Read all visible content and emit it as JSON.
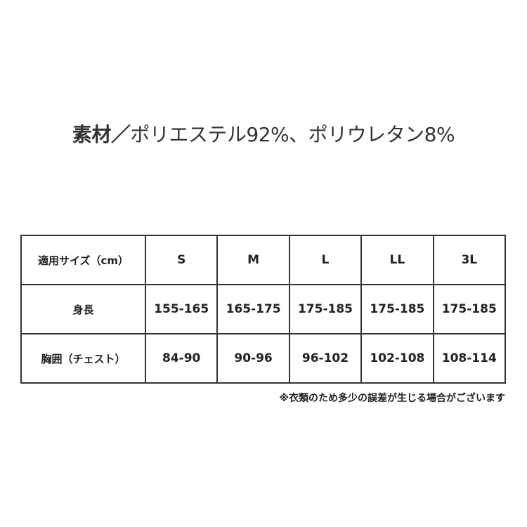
{
  "title": {
    "label": "素材／",
    "text": "ポリエステル92%、ポリウレタン8%"
  },
  "table": {
    "header": [
      "適用サイズ（cm）",
      "S",
      "M",
      "L",
      "LL",
      "3L"
    ],
    "rows": [
      [
        "身長",
        "155-165",
        "165-175",
        "175-185",
        "175-185",
        "175-185"
      ],
      [
        "胸囲（チェスト）",
        "84-90",
        "90-96",
        "96-102",
        "102-108",
        "108-114"
      ]
    ]
  },
  "note": "※衣類のため多少の誤差が生じる場合がございます"
}
